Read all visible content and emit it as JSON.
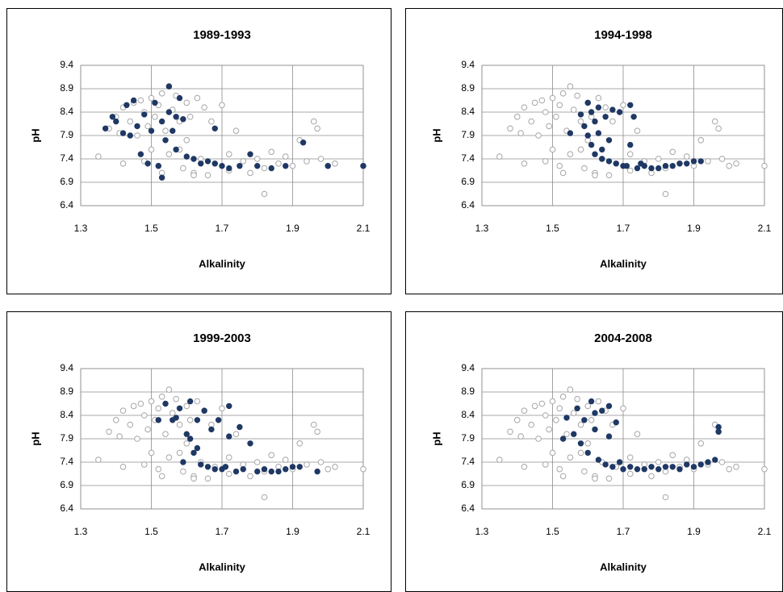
{
  "chart_data": [
    {
      "type": "scatter",
      "title": "1989-1993",
      "x_label": "Alkalinity",
      "y_label": "pH",
      "xlim": [
        1.3,
        2.1
      ],
      "ylim": [
        6.4,
        9.4
      ],
      "xticks": [
        1.3,
        1.5,
        1.7,
        1.9,
        2.1
      ],
      "yticks": [
        6.4,
        6.9,
        7.4,
        7.9,
        8.4,
        8.9,
        9.4
      ],
      "grid": true,
      "series": [
        {
          "color": "#a6a6a6",
          "marker": "open",
          "x": [
            1.35,
            1.38,
            1.4,
            1.42,
            1.42,
            1.44,
            1.45,
            1.46,
            1.47,
            1.48,
            1.48,
            1.49,
            1.5,
            1.5,
            1.51,
            1.52,
            1.52,
            1.53,
            1.54,
            1.55,
            1.55,
            1.56,
            1.57,
            1.58,
            1.59,
            1.6,
            1.6,
            1.61,
            1.62,
            1.63,
            1.64,
            1.65,
            1.66,
            1.67,
            1.68,
            1.7,
            1.72,
            1.74,
            1.76,
            1.78,
            1.8,
            1.82,
            1.82,
            1.84,
            1.86,
            1.88,
            1.9,
            1.92,
            1.94,
            1.96,
            1.97,
            1.98,
            2.0,
            2.02,
            2.1,
            1.41,
            1.53,
            1.58,
            1.62,
            1.72
          ],
          "values": [
            7.45,
            8.05,
            8.3,
            8.5,
            7.3,
            8.2,
            8.6,
            7.9,
            8.65,
            8.4,
            7.35,
            8.1,
            8.7,
            7.6,
            8.3,
            8.55,
            7.25,
            8.8,
            8.0,
            8.95,
            7.5,
            8.45,
            8.75,
            8.2,
            7.2,
            8.6,
            7.8,
            8.3,
            7.1,
            8.7,
            7.4,
            8.5,
            7.05,
            8.2,
            7.3,
            8.55,
            7.15,
            8.0,
            7.35,
            7.1,
            7.4,
            7.2,
            6.65,
            7.55,
            7.3,
            7.45,
            7.25,
            7.8,
            7.35,
            8.2,
            8.05,
            7.4,
            7.25,
            7.3,
            7.25,
            7.95,
            7.1,
            7.6,
            7.05,
            7.5
          ]
        },
        {
          "color": "#1f3864",
          "marker": "filled",
          "x": [
            1.37,
            1.39,
            1.4,
            1.42,
            1.43,
            1.44,
            1.45,
            1.46,
            1.47,
            1.48,
            1.49,
            1.5,
            1.51,
            1.52,
            1.53,
            1.54,
            1.55,
            1.55,
            1.56,
            1.57,
            1.58,
            1.59,
            1.6,
            1.62,
            1.64,
            1.66,
            1.68,
            1.7,
            1.72,
            1.75,
            1.78,
            1.8,
            1.84,
            1.88,
            1.93,
            2.0,
            2.1,
            1.53,
            1.57,
            1.68
          ],
          "values": [
            8.05,
            8.3,
            8.2,
            7.95,
            8.55,
            7.9,
            8.65,
            8.1,
            7.5,
            8.35,
            7.3,
            8.0,
            8.6,
            7.25,
            8.2,
            7.8,
            8.95,
            8.4,
            8.0,
            7.6,
            8.7,
            8.25,
            7.45,
            7.4,
            7.3,
            7.35,
            8.05,
            7.25,
            7.2,
            7.25,
            7.5,
            7.25,
            7.2,
            7.25,
            7.75,
            7.25,
            7.25,
            7.0,
            8.3,
            7.3
          ]
        }
      ]
    },
    {
      "type": "scatter",
      "title": "1994-1998",
      "x_label": "Alkalinity",
      "y_label": "pH",
      "xlim": [
        1.3,
        2.1
      ],
      "ylim": [
        6.4,
        9.4
      ],
      "xticks": [
        1.3,
        1.5,
        1.7,
        1.9,
        2.1
      ],
      "yticks": [
        6.4,
        6.9,
        7.4,
        7.9,
        8.4,
        8.9,
        9.4
      ],
      "grid": true,
      "series": [
        {
          "color": "#a6a6a6",
          "marker": "open",
          "x": [
            1.35,
            1.38,
            1.4,
            1.42,
            1.42,
            1.44,
            1.45,
            1.46,
            1.47,
            1.48,
            1.48,
            1.49,
            1.5,
            1.5,
            1.51,
            1.52,
            1.52,
            1.53,
            1.54,
            1.55,
            1.55,
            1.56,
            1.57,
            1.58,
            1.59,
            1.6,
            1.6,
            1.61,
            1.62,
            1.63,
            1.64,
            1.65,
            1.66,
            1.67,
            1.68,
            1.7,
            1.72,
            1.74,
            1.76,
            1.78,
            1.8,
            1.82,
            1.82,
            1.84,
            1.86,
            1.88,
            1.9,
            1.92,
            1.94,
            1.96,
            1.97,
            1.98,
            2.0,
            2.02,
            2.1,
            1.41,
            1.53,
            1.58,
            1.62,
            1.72
          ],
          "values": [
            7.45,
            8.05,
            8.3,
            8.5,
            7.3,
            8.2,
            8.6,
            7.9,
            8.65,
            8.4,
            7.35,
            8.1,
            8.7,
            7.6,
            8.3,
            8.55,
            7.25,
            8.8,
            8.0,
            8.95,
            7.5,
            8.45,
            8.75,
            8.2,
            7.2,
            8.6,
            7.8,
            8.3,
            7.1,
            8.7,
            7.4,
            8.5,
            7.05,
            8.2,
            7.3,
            8.55,
            7.15,
            8.0,
            7.35,
            7.1,
            7.4,
            7.2,
            6.65,
            7.55,
            7.3,
            7.45,
            7.25,
            7.8,
            7.35,
            8.2,
            8.05,
            7.4,
            7.25,
            7.3,
            7.25,
            7.95,
            7.1,
            7.6,
            7.05,
            7.5
          ]
        },
        {
          "color": "#1f3864",
          "marker": "filled",
          "x": [
            1.58,
            1.59,
            1.6,
            1.6,
            1.61,
            1.61,
            1.62,
            1.62,
            1.63,
            1.63,
            1.64,
            1.65,
            1.66,
            1.67,
            1.68,
            1.7,
            1.72,
            1.72,
            1.73,
            1.74,
            1.76,
            1.78,
            1.8,
            1.82,
            1.84,
            1.86,
            1.88,
            1.9,
            1.92,
            1.55,
            1.69,
            1.71,
            1.66,
            1.64,
            1.75
          ],
          "values": [
            8.35,
            8.1,
            8.6,
            7.9,
            8.4,
            7.7,
            8.2,
            7.5,
            8.5,
            7.95,
            7.4,
            8.3,
            7.35,
            8.45,
            7.3,
            7.25,
            8.55,
            7.7,
            8.3,
            7.2,
            7.25,
            7.2,
            7.2,
            7.25,
            7.25,
            7.3,
            7.3,
            7.35,
            7.35,
            7.95,
            8.4,
            7.25,
            7.8,
            7.6,
            7.3
          ]
        }
      ]
    },
    {
      "type": "scatter",
      "title": "1999-2003",
      "x_label": "Alkalinity",
      "y_label": "pH",
      "xlim": [
        1.3,
        2.1
      ],
      "ylim": [
        6.4,
        9.4
      ],
      "xticks": [
        1.3,
        1.5,
        1.7,
        1.9,
        2.1
      ],
      "yticks": [
        6.4,
        6.9,
        7.4,
        7.9,
        8.4,
        8.9,
        9.4
      ],
      "grid": true,
      "series": [
        {
          "color": "#a6a6a6",
          "marker": "open",
          "x": [
            1.35,
            1.38,
            1.4,
            1.42,
            1.42,
            1.44,
            1.45,
            1.46,
            1.47,
            1.48,
            1.48,
            1.49,
            1.5,
            1.5,
            1.51,
            1.52,
            1.52,
            1.53,
            1.54,
            1.55,
            1.55,
            1.56,
            1.57,
            1.58,
            1.59,
            1.6,
            1.6,
            1.61,
            1.62,
            1.63,
            1.64,
            1.65,
            1.66,
            1.67,
            1.68,
            1.7,
            1.72,
            1.74,
            1.76,
            1.78,
            1.8,
            1.82,
            1.82,
            1.84,
            1.86,
            1.88,
            1.9,
            1.92,
            1.94,
            1.96,
            1.97,
            1.98,
            2.0,
            2.02,
            2.1,
            1.41,
            1.53,
            1.58,
            1.62,
            1.72
          ],
          "values": [
            7.45,
            8.05,
            8.3,
            8.5,
            7.3,
            8.2,
            8.6,
            7.9,
            8.65,
            8.4,
            7.35,
            8.1,
            8.7,
            7.6,
            8.3,
            8.55,
            7.25,
            8.8,
            8.0,
            8.95,
            7.5,
            8.45,
            8.75,
            8.2,
            7.2,
            8.6,
            7.8,
            8.3,
            7.1,
            8.7,
            7.4,
            8.5,
            7.05,
            8.2,
            7.3,
            8.55,
            7.15,
            8.0,
            7.35,
            7.1,
            7.4,
            7.2,
            6.65,
            7.55,
            7.3,
            7.45,
            7.25,
            7.8,
            7.35,
            8.2,
            8.05,
            7.4,
            7.25,
            7.3,
            7.25,
            7.95,
            7.1,
            7.6,
            7.05,
            7.5
          ]
        },
        {
          "color": "#1f3864",
          "marker": "filled",
          "x": [
            1.52,
            1.54,
            1.56,
            1.58,
            1.59,
            1.6,
            1.61,
            1.62,
            1.63,
            1.64,
            1.65,
            1.66,
            1.67,
            1.68,
            1.7,
            1.72,
            1.72,
            1.74,
            1.75,
            1.76,
            1.78,
            1.8,
            1.82,
            1.84,
            1.86,
            1.88,
            1.9,
            1.92,
            1.97,
            1.61,
            1.63,
            1.57,
            1.69,
            1.71
          ],
          "values": [
            8.3,
            8.65,
            8.3,
            8.55,
            7.4,
            8.0,
            8.7,
            7.6,
            8.3,
            7.35,
            8.5,
            7.3,
            8.1,
            7.25,
            7.25,
            8.6,
            7.95,
            7.2,
            8.15,
            7.25,
            7.8,
            7.2,
            7.25,
            7.2,
            7.2,
            7.25,
            7.3,
            7.3,
            7.2,
            7.9,
            7.7,
            8.35,
            8.3,
            7.3
          ]
        }
      ]
    },
    {
      "type": "scatter",
      "title": "2004-2008",
      "x_label": "Alkalinity",
      "y_label": "pH",
      "xlim": [
        1.3,
        2.1
      ],
      "ylim": [
        6.4,
        9.4
      ],
      "xticks": [
        1.3,
        1.5,
        1.7,
        1.9,
        2.1
      ],
      "yticks": [
        6.4,
        6.9,
        7.4,
        7.9,
        8.4,
        8.9,
        9.4
      ],
      "grid": true,
      "series": [
        {
          "color": "#a6a6a6",
          "marker": "open",
          "x": [
            1.35,
            1.38,
            1.4,
            1.42,
            1.42,
            1.44,
            1.45,
            1.46,
            1.47,
            1.48,
            1.48,
            1.49,
            1.5,
            1.5,
            1.51,
            1.52,
            1.52,
            1.53,
            1.54,
            1.55,
            1.55,
            1.56,
            1.57,
            1.58,
            1.59,
            1.6,
            1.6,
            1.61,
            1.62,
            1.63,
            1.64,
            1.65,
            1.66,
            1.67,
            1.68,
            1.7,
            1.72,
            1.74,
            1.76,
            1.78,
            1.8,
            1.82,
            1.82,
            1.84,
            1.86,
            1.88,
            1.9,
            1.92,
            1.94,
            1.96,
            1.97,
            1.98,
            2.0,
            2.02,
            2.1,
            1.41,
            1.53,
            1.58,
            1.62,
            1.72
          ],
          "values": [
            7.45,
            8.05,
            8.3,
            8.5,
            7.3,
            8.2,
            8.6,
            7.9,
            8.65,
            8.4,
            7.35,
            8.1,
            8.7,
            7.6,
            8.3,
            8.55,
            7.25,
            8.8,
            8.0,
            8.95,
            7.5,
            8.45,
            8.75,
            8.2,
            7.2,
            8.6,
            7.8,
            8.3,
            7.1,
            8.7,
            7.4,
            8.5,
            7.05,
            8.2,
            7.3,
            8.55,
            7.15,
            8.0,
            7.35,
            7.1,
            7.4,
            7.2,
            6.65,
            7.55,
            7.3,
            7.45,
            7.25,
            7.8,
            7.35,
            8.2,
            8.05,
            7.4,
            7.25,
            7.3,
            7.25,
            7.95,
            7.1,
            7.6,
            7.05,
            7.5
          ]
        },
        {
          "color": "#1f3864",
          "marker": "filled",
          "x": [
            1.54,
            1.56,
            1.57,
            1.58,
            1.59,
            1.6,
            1.61,
            1.62,
            1.63,
            1.64,
            1.65,
            1.66,
            1.67,
            1.68,
            1.7,
            1.72,
            1.74,
            1.76,
            1.78,
            1.8,
            1.82,
            1.84,
            1.86,
            1.88,
            1.9,
            1.92,
            1.94,
            1.96,
            1.97,
            1.97,
            1.53,
            1.62,
            1.66,
            1.69
          ],
          "values": [
            8.35,
            8.0,
            8.55,
            7.8,
            8.3,
            7.6,
            8.7,
            8.1,
            7.45,
            8.5,
            7.35,
            8.6,
            7.3,
            8.25,
            7.25,
            7.3,
            7.25,
            7.25,
            7.3,
            7.25,
            7.3,
            7.3,
            7.25,
            7.35,
            7.3,
            7.35,
            7.4,
            7.45,
            8.15,
            8.05,
            7.9,
            8.45,
            7.95,
            7.4
          ]
        }
      ]
    }
  ]
}
